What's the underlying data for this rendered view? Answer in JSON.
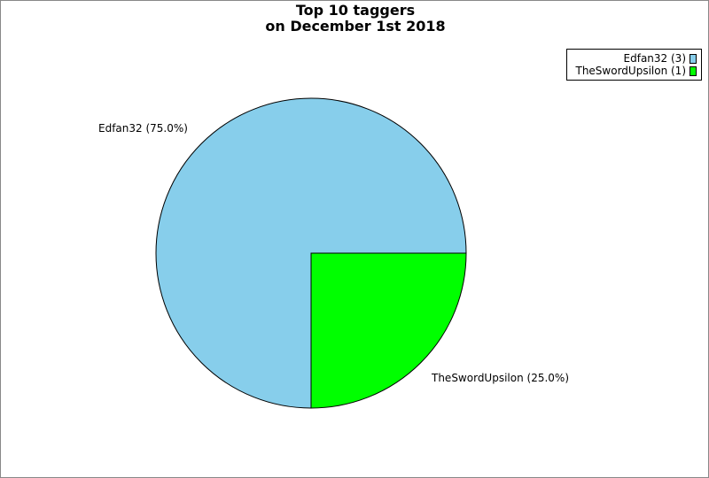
{
  "chart_data": {
    "type": "pie",
    "title_lines": [
      "Top 10 taggers",
      "on December 1st 2018"
    ],
    "slices": [
      {
        "name": "Edfan32",
        "value": 3,
        "percent": 75.0,
        "color": "#87ceeb",
        "legend_label": "Edfan32 (3)",
        "slice_label": "Edfan32 (75.0%)"
      },
      {
        "name": "TheSwordUpsilon",
        "value": 1,
        "percent": 25.0,
        "color": "#00ff00",
        "legend_label": "TheSwordUpsilon (1)",
        "slice_label": "TheSwordUpsilon (25.0%)"
      }
    ],
    "legend_position": "top-right"
  }
}
